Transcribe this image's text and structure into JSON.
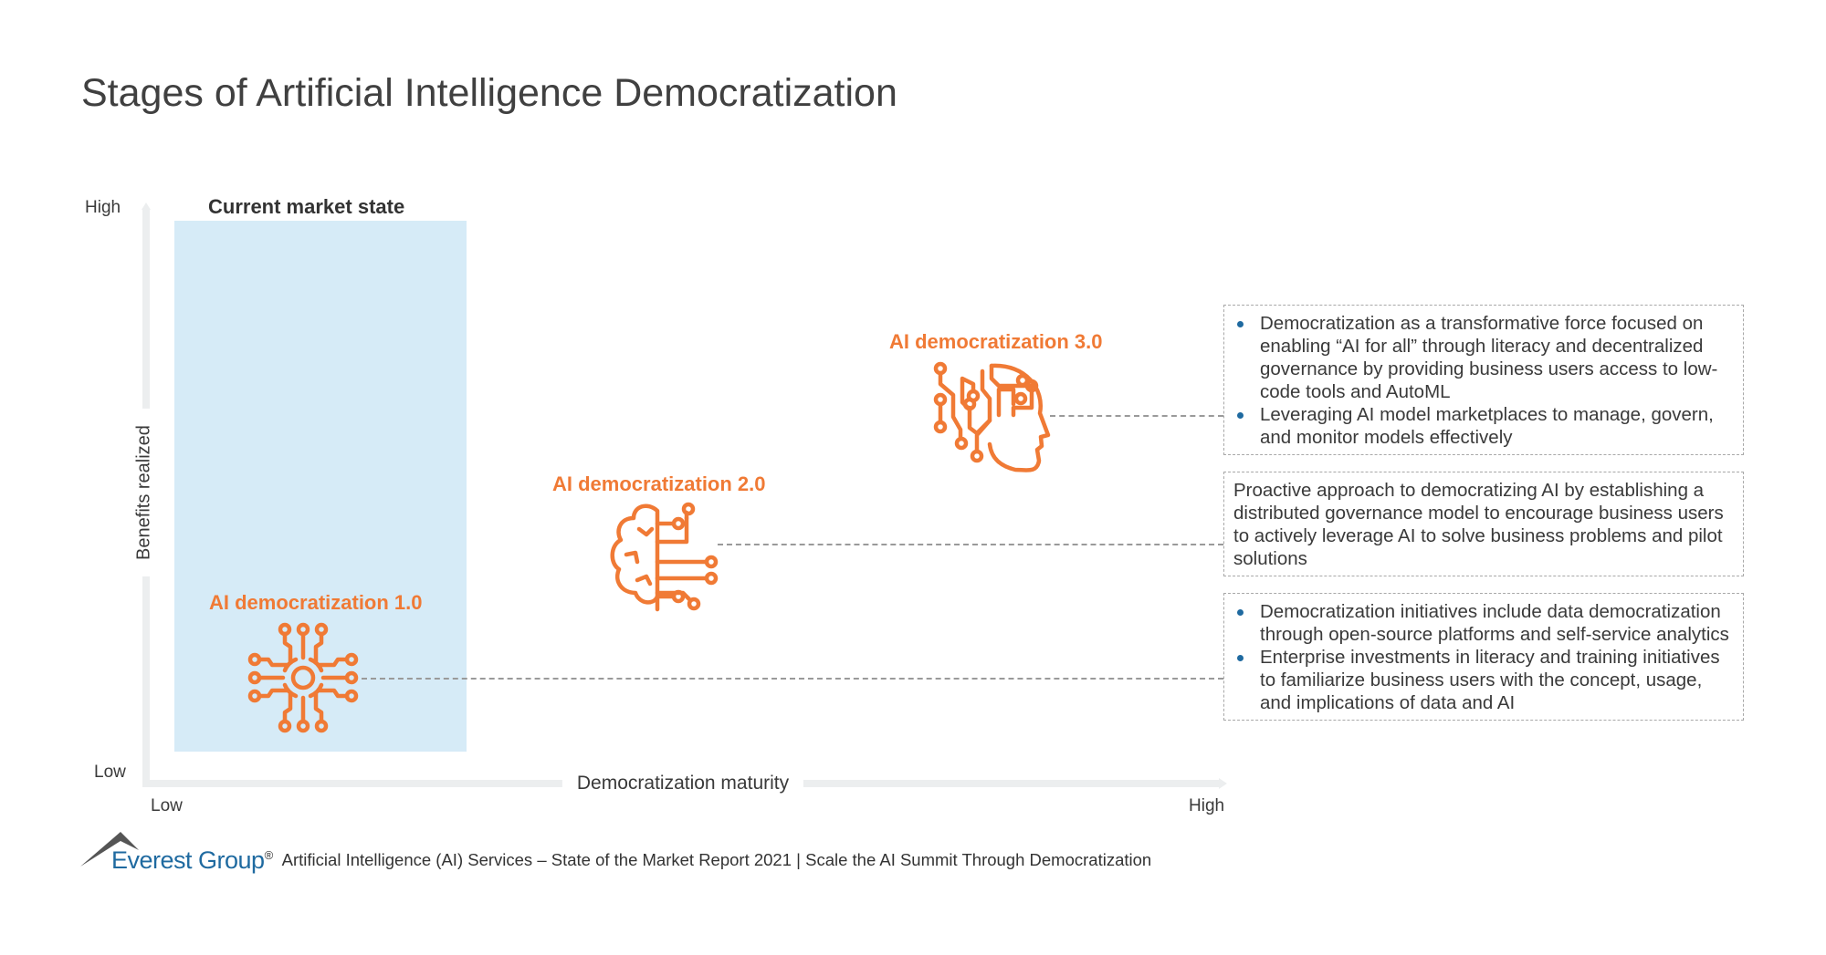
{
  "title": "Stages of Artificial Intelligence Democratization",
  "y_axis": {
    "label": "Benefits realized",
    "high": "High",
    "low": "Low"
  },
  "x_axis": {
    "label": "Democratization maturity",
    "low": "Low",
    "high": "High"
  },
  "current_market_state": "Current market state",
  "accent_color": "#f07a35",
  "highlight_color": "#d6ebf7",
  "stages": [
    {
      "label": "AI democratization 1.0",
      "icon": "network-hub-icon",
      "bullets": [
        "Democratization initiatives include data democratization through open-source platforms and self-service analytics",
        "Enterprise investments in literacy and training initiatives to familiarize business users with the concept, usage, and implications of data and AI"
      ]
    },
    {
      "label": "AI democratization 2.0",
      "icon": "circuit-brain-icon",
      "text": "Proactive approach to democratizing AI by establishing a distributed governance model to encourage business users to actively leverage AI to solve business problems and pilot solutions"
    },
    {
      "label": "AI democratization 3.0",
      "icon": "ai-head-icon",
      "bullets": [
        "Democratization as a transformative force focused on enabling “AI for all” through literacy and decentralized governance by providing business users access to low-code tools and AutoML",
        "Leveraging AI model marketplaces to manage, govern, and monitor models effectively"
      ]
    }
  ],
  "footer": {
    "brand": "Everest Group",
    "brand_mark": "®",
    "text": "Artificial Intelligence (AI) Services – State of the Market Report 2021 | Scale the AI Summit Through Democratization"
  }
}
